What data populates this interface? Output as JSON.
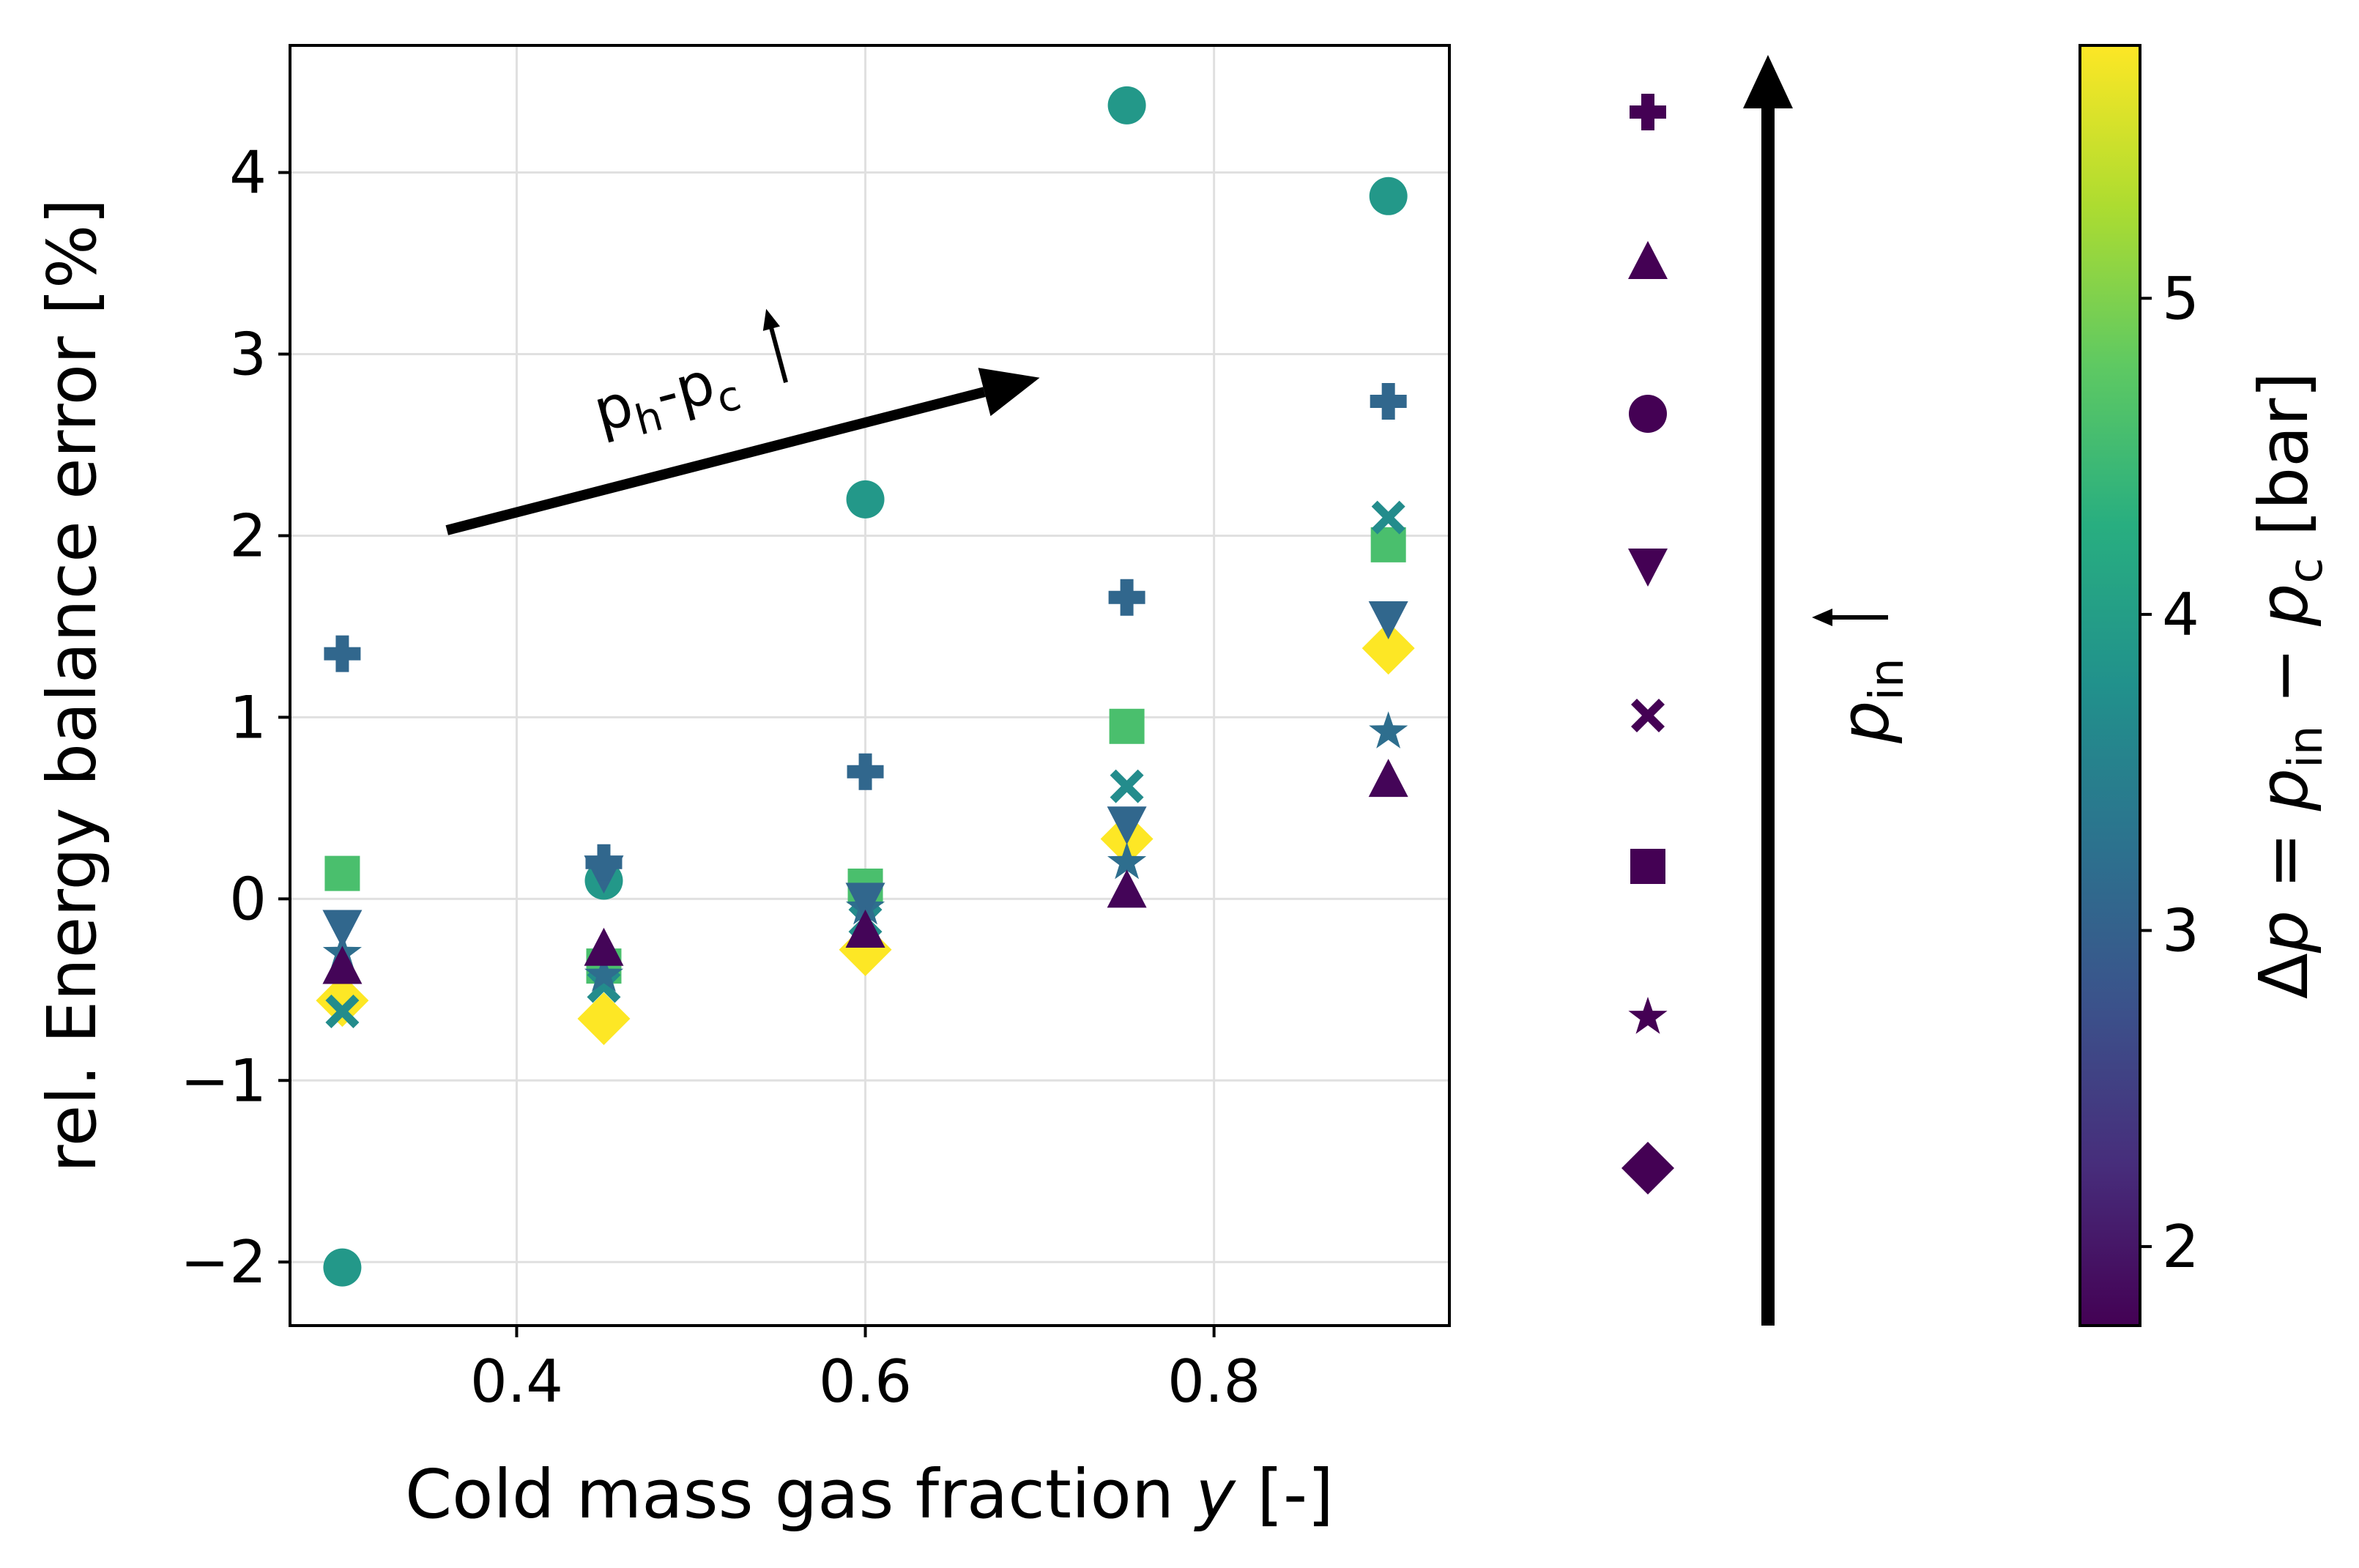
{
  "chart_data": {
    "type": "scatter",
    "title": "",
    "xlabel_main": "Cold mass gas fraction ",
    "xlabel_var": "y",
    "xlabel_unit": " [-]",
    "ylabel": "rel. Energy balance error [%]",
    "xlim": [
      0.27,
      0.935
    ],
    "ylim": [
      -2.35,
      4.7
    ],
    "xticks": [
      0.4,
      0.6,
      0.8
    ],
    "xtick_labels": [
      "0.4",
      "0.6",
      "0.8"
    ],
    "yticks": [
      -2,
      -1,
      0,
      1,
      2,
      3,
      4
    ],
    "ytick_labels": [
      "−2",
      "−1",
      "0",
      "1",
      "2",
      "3",
      "4"
    ],
    "grid": true,
    "annotation_arrow": {
      "label_p": "p",
      "label_h": "h",
      "label_dash": "-",
      "label_c": "c",
      "from": [
        0.36,
        2.03
      ],
      "to": [
        0.7,
        2.87
      ]
    },
    "colorbar": {
      "label_prefix": "Δ",
      "label_p": "p",
      "label_eq": " = ",
      "label_in": "in",
      "label_minus": " − ",
      "label_c": "c",
      "label_unit": " [bar]",
      "range": [
        1.75,
        5.8
      ],
      "ticks": [
        2,
        3,
        4,
        5
      ],
      "tick_labels": [
        "2",
        "3",
        "4",
        "5"
      ],
      "colormap": "viridis"
    },
    "legend": {
      "arrow_label_p": "p",
      "arrow_label_sub": "in",
      "markers_top_to_bottom": [
        "plus",
        "triangle-up",
        "circle",
        "triangle-down",
        "x",
        "square",
        "star",
        "diamond"
      ],
      "color": "#440154"
    },
    "series": [
      {
        "name": "diamond",
        "marker": "diamond",
        "dp": 5.8,
        "points": [
          [
            0.3,
            -0.56
          ],
          [
            0.45,
            -0.66
          ],
          [
            0.6,
            -0.28
          ],
          [
            0.75,
            0.33
          ],
          [
            0.9,
            1.38
          ]
        ]
      },
      {
        "name": "square",
        "marker": "square",
        "dp": 4.6,
        "points": [
          [
            0.3,
            0.14
          ],
          [
            0.45,
            -0.37
          ],
          [
            0.6,
            0.07
          ],
          [
            0.75,
            0.95
          ],
          [
            0.9,
            1.95
          ]
        ]
      },
      {
        "name": "circle",
        "marker": "circle",
        "dp": 3.9,
        "points": [
          [
            0.3,
            -2.03
          ],
          [
            0.45,
            0.1
          ],
          [
            0.6,
            2.2
          ],
          [
            0.75,
            4.37
          ],
          [
            0.9,
            3.87
          ]
        ]
      },
      {
        "name": "x",
        "marker": "x",
        "dp": 3.7,
        "points": [
          [
            0.3,
            -0.62
          ],
          [
            0.45,
            -0.48
          ],
          [
            0.6,
            -0.12
          ],
          [
            0.75,
            0.62
          ],
          [
            0.9,
            2.1
          ]
        ]
      },
      {
        "name": "star",
        "marker": "star",
        "dp": 3.2,
        "points": [
          [
            0.3,
            -0.3
          ],
          [
            0.45,
            -0.42
          ],
          [
            0.6,
            -0.05
          ],
          [
            0.75,
            0.2
          ],
          [
            0.9,
            0.92
          ]
        ]
      },
      {
        "name": "triangle-down",
        "marker": "triangle-down",
        "dp": 3.1,
        "points": [
          [
            0.3,
            -0.15
          ],
          [
            0.45,
            0.15
          ],
          [
            0.6,
            0.0
          ],
          [
            0.75,
            0.42
          ],
          [
            0.9,
            1.55
          ]
        ]
      },
      {
        "name": "plus",
        "marker": "plus",
        "dp": 3.1,
        "points": [
          [
            0.3,
            1.35
          ],
          [
            0.45,
            0.2
          ],
          [
            0.6,
            0.7
          ],
          [
            0.75,
            1.66
          ],
          [
            0.9,
            2.74
          ]
        ]
      },
      {
        "name": "triangle-up",
        "marker": "triangle-up",
        "dp": 1.8,
        "points": [
          [
            0.3,
            -0.38
          ],
          [
            0.45,
            -0.28
          ],
          [
            0.6,
            -0.18
          ],
          [
            0.75,
            0.04
          ],
          [
            0.9,
            0.65
          ]
        ]
      }
    ]
  }
}
